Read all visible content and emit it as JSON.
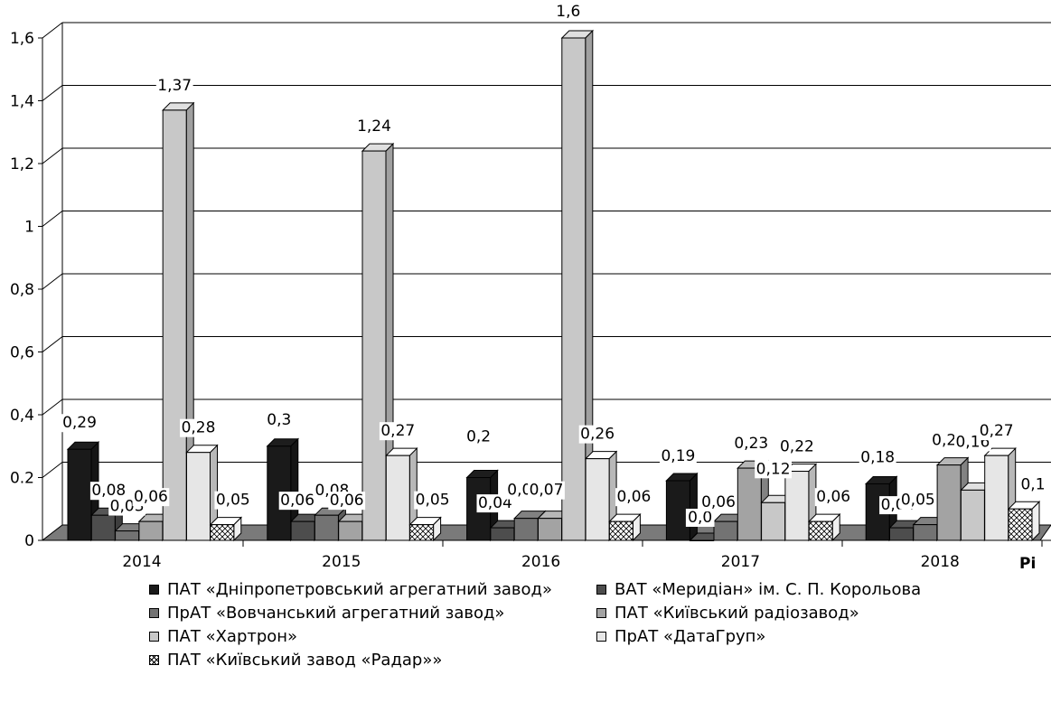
{
  "chart_data": {
    "type": "bar",
    "three_d": true,
    "categories": [
      "2014",
      "2015",
      "2016",
      "2017",
      "2018"
    ],
    "ylim": [
      0,
      1.6
    ],
    "yticks": [
      "0",
      "0.2",
      "0,4",
      "0,6",
      "0,8",
      "1",
      "1,2",
      "1,4",
      "1,6"
    ],
    "ytick_values": [
      0,
      0.2,
      0.4,
      0.6,
      0.8,
      1.0,
      1.2,
      1.4,
      1.6
    ],
    "grid": true,
    "legend_position": "bottom",
    "edge_text": "Рі",
    "series": [
      {
        "name": "ПАТ «Дніпропетровський агрегатний завод»",
        "color": "#1a1a1a",
        "pattern": "solid",
        "values": [
          0.29,
          0.3,
          0.2,
          0.19,
          0.18
        ],
        "labels": [
          "0,29",
          "0,3",
          "0,2",
          "0,19",
          "0,18"
        ]
      },
      {
        "name": "ВАТ «Меридіан» ім. С. П. Корольова",
        "color": "#4d4d4d",
        "pattern": "solid",
        "values": [
          0.08,
          0.06,
          0.04,
          0.0,
          0.04
        ],
        "labels": [
          "0,08",
          "0,06",
          "0,04",
          "0,0",
          "0,04"
        ]
      },
      {
        "name": "ПрАТ «Вовчанський агрегатний завод»",
        "color": "#737373",
        "pattern": "solid",
        "values": [
          0.03,
          0.08,
          0.07,
          0.06,
          0.05
        ],
        "labels": [
          "0,03",
          "0,08",
          "0,07",
          "0,06",
          "0,05"
        ]
      },
      {
        "name": "ПАТ «Київський радіозавод»",
        "color": "#a3a3a3",
        "pattern": "solid",
        "values": [
          0.06,
          0.06,
          0.07,
          0.23,
          0.24
        ],
        "labels": [
          "0,06",
          "0,06",
          "0,07",
          "0,23",
          "0,24"
        ]
      },
      {
        "name": "ПАТ «Хартрон»",
        "color": "#c8c8c8",
        "pattern": "solid",
        "values": [
          1.37,
          1.24,
          1.6,
          0.12,
          0.16
        ],
        "labels": [
          "1,37",
          "1,24",
          "1,6",
          "0,12",
          "0,16"
        ]
      },
      {
        "name": "ПрАТ «ДатаГруп»",
        "color": "#e6e6e6",
        "pattern": "solid",
        "values": [
          0.28,
          0.27,
          0.26,
          0.22,
          0.27
        ],
        "labels": [
          "0,28",
          "0,27",
          "0,26",
          "0,22",
          "0,27"
        ]
      },
      {
        "name": "ПАТ «Київський завод «Радар»»",
        "color": "#ffffff",
        "pattern": "crosshatch",
        "values": [
          0.05,
          0.05,
          0.06,
          0.06,
          0.1
        ],
        "labels": [
          "0,05",
          "0,05",
          "0,06",
          "0,06",
          "0,1"
        ]
      }
    ]
  }
}
